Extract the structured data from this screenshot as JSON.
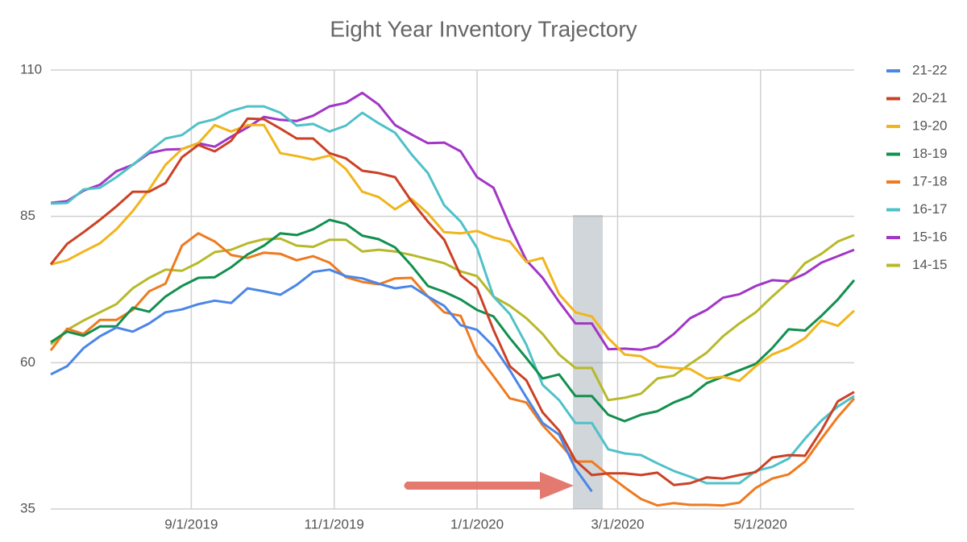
{
  "chart_data": {
    "type": "line",
    "title": "Eight Year Inventory Trajectory",
    "x": [
      "7/3/2019",
      "7/10/2019",
      "7/17/2019",
      "7/24/2019",
      "7/31/2019",
      "8/7/2019",
      "8/14/2019",
      "8/21/2019",
      "8/28/2019",
      "9/4/2019",
      "9/11/2019",
      "9/18/2019",
      "9/25/2019",
      "10/2/2019",
      "10/9/2019",
      "10/16/2019",
      "10/23/2019",
      "10/30/2019",
      "11/6/2019",
      "11/13/2019",
      "11/20/2019",
      "11/27/2019",
      "12/4/2019",
      "12/11/2019",
      "12/18/2019",
      "12/25/2019",
      "1/1/2020",
      "1/8/2020",
      "1/15/2020",
      "1/22/2020",
      "1/29/2020",
      "2/5/2020",
      "2/12/2020",
      "2/19/2020",
      "2/26/2020",
      "3/4/2020",
      "3/11/2020",
      "3/18/2020",
      "3/25/2020",
      "4/1/2020",
      "4/8/2020",
      "4/15/2020",
      "4/22/2020",
      "4/29/2020",
      "5/6/2020",
      "5/13/2020",
      "5/20/2020",
      "5/27/2020",
      "6/3/2020",
      "6/10/2020"
    ],
    "xlim": [
      "7/3/2019",
      "6/10/2020"
    ],
    "xticks": [
      "9/1/2019",
      "11/1/2019",
      "1/1/2020",
      "3/1/2020",
      "5/1/2020"
    ],
    "ylim": [
      35,
      110
    ],
    "yticks": [
      35,
      60,
      85,
      110
    ],
    "grid": true,
    "legend": "right",
    "series": [
      {
        "name": "21-22",
        "color": "#4a86e8",
        "values": [
          58,
          59.4,
          62.5,
          64.5,
          66,
          65.3,
          66.7,
          68.6,
          69.1,
          70,
          70.6,
          70.2,
          72.7,
          72.2,
          71.6,
          73.3,
          75.5,
          75.9,
          74.8,
          74.4,
          73.5,
          72.7,
          73.1,
          71.3,
          69.7,
          66.4,
          65.6,
          62.8,
          58.7,
          54.1,
          49.7,
          47.7,
          41.9,
          38,
          null,
          null,
          null,
          null,
          null,
          null,
          null,
          null,
          null,
          null,
          null,
          null,
          null,
          null,
          null,
          null
        ]
      },
      {
        "name": "20-21",
        "color": "#cc4125",
        "values": [
          76.8,
          80.3,
          82.3,
          84.4,
          86.7,
          89.2,
          89.2,
          90.7,
          95.1,
          97.2,
          96.1,
          97.9,
          101.7,
          101.6,
          100,
          98.3,
          98.3,
          95.8,
          94.9,
          92.8,
          92.4,
          91.7,
          87.6,
          84.1,
          81,
          74.9,
          72.7,
          65.6,
          59.4,
          57,
          51.5,
          48.4,
          43.3,
          40.8,
          41.1,
          41.1,
          40.8,
          41.2,
          39.1,
          39.4,
          40.4,
          40.2,
          40.8,
          41.3,
          43.8,
          44.2,
          44.1,
          48.4,
          53.4,
          55
        ]
      },
      {
        "name": "19-20",
        "color": "#f1b51c",
        "values": [
          76.8,
          77.5,
          79,
          80.4,
          82.8,
          85.9,
          89.6,
          93.8,
          96.5,
          97.5,
          100.6,
          99.5,
          100.6,
          100.6,
          95.8,
          95.3,
          94.7,
          95.4,
          93.1,
          89.2,
          88.3,
          86.2,
          88,
          85.5,
          82.3,
          82.1,
          82.5,
          81.4,
          80.7,
          77.2,
          77.9,
          71.7,
          68.6,
          67.9,
          64.2,
          61.4,
          61.1,
          59.4,
          59.1,
          58.9,
          57.3,
          57.6,
          56.9,
          59.4,
          61.4,
          62.5,
          64.2,
          67.2,
          66.3,
          68.9
        ]
      },
      {
        "name": "18-19",
        "color": "#12904f",
        "values": [
          63.5,
          65.3,
          64.6,
          66.2,
          66.2,
          69.4,
          68.7,
          71.3,
          73.1,
          74.5,
          74.6,
          76.3,
          78.5,
          80,
          82.1,
          81.8,
          82.8,
          84.4,
          83.7,
          81.7,
          81.1,
          79.7,
          76.6,
          73.1,
          72.1,
          70.8,
          69,
          67.9,
          64.2,
          60.8,
          57.3,
          58,
          54.3,
          54.3,
          51.1,
          50,
          51.1,
          51.7,
          53.2,
          54.3,
          56.5,
          57.6,
          58.7,
          59.8,
          62.5,
          65.7,
          65.5,
          68,
          70.8,
          74.1
        ]
      },
      {
        "name": "17-18",
        "color": "#ef7a1f",
        "values": [
          62.1,
          65.8,
          64.9,
          67.3,
          67.3,
          69,
          72.2,
          73.5,
          80,
          82.1,
          80.7,
          78.4,
          77.9,
          78.8,
          78.6,
          77.5,
          78.2,
          77.1,
          74.6,
          73.8,
          73.4,
          74.4,
          74.5,
          71.3,
          68.6,
          68,
          61.4,
          57.7,
          53.9,
          53.2,
          49.3,
          46.3,
          43.1,
          43.1,
          40.8,
          38.7,
          36.7,
          35.6,
          36,
          35.7,
          35.7,
          35.6,
          36.1,
          38.6,
          40.2,
          40.9,
          43.1,
          47,
          50.7,
          53.9
        ]
      },
      {
        "name": "16-17",
        "color": "#4fc1c8",
        "values": [
          87.2,
          87.3,
          89.6,
          89.9,
          91.7,
          93.8,
          96.1,
          98.3,
          98.9,
          100.9,
          101.6,
          103,
          103.8,
          103.8,
          102.7,
          100.5,
          100.8,
          99.5,
          100.5,
          102.7,
          100.9,
          99.3,
          95.6,
          92.4,
          86.9,
          84.1,
          79.6,
          71.3,
          68.3,
          63.1,
          56.2,
          53.6,
          49.7,
          49.7,
          45.2,
          44.5,
          44.2,
          42.8,
          41.5,
          40.5,
          39.4,
          39.4,
          39.4,
          41.5,
          42.2,
          43.6,
          47,
          50.1,
          52.5,
          54.3
        ]
      },
      {
        "name": "15-16",
        "color": "#a236c6",
        "values": [
          87.3,
          87.6,
          89.4,
          90.4,
          92.7,
          93.8,
          95.8,
          96.4,
          96.5,
          97.5,
          96.9,
          98.6,
          100.2,
          102,
          101.5,
          101.3,
          102.2,
          103.8,
          104.4,
          106.1,
          104.1,
          100.6,
          99,
          97.5,
          97.6,
          96.1,
          91.7,
          89.9,
          83.4,
          77.5,
          74.5,
          70.4,
          66.7,
          66.7,
          62.3,
          62.4,
          62.2,
          62.8,
          64.9,
          67.6,
          69,
          71.1,
          71.7,
          73.1,
          74.1,
          73.9,
          75.2,
          77.1,
          78.2,
          79.3
        ]
      },
      {
        "name": "14-15",
        "color": "#b7b92a",
        "values": [
          63.1,
          65.6,
          67.2,
          68.6,
          70,
          72.7,
          74.5,
          75.9,
          75.7,
          77.1,
          78.9,
          79.3,
          80.4,
          81.1,
          81.2,
          80,
          79.8,
          81,
          81,
          79,
          79.3,
          79,
          78.4,
          77.7,
          77,
          75.6,
          74.8,
          71.3,
          69.7,
          67.6,
          64.9,
          61.4,
          59.1,
          59.1,
          53.6,
          54,
          54.7,
          57.3,
          57.8,
          59.8,
          61.7,
          64.5,
          66.7,
          68.6,
          71.3,
          73.8,
          77,
          78.6,
          80.7,
          81.8
        ]
      }
    ]
  }
}
